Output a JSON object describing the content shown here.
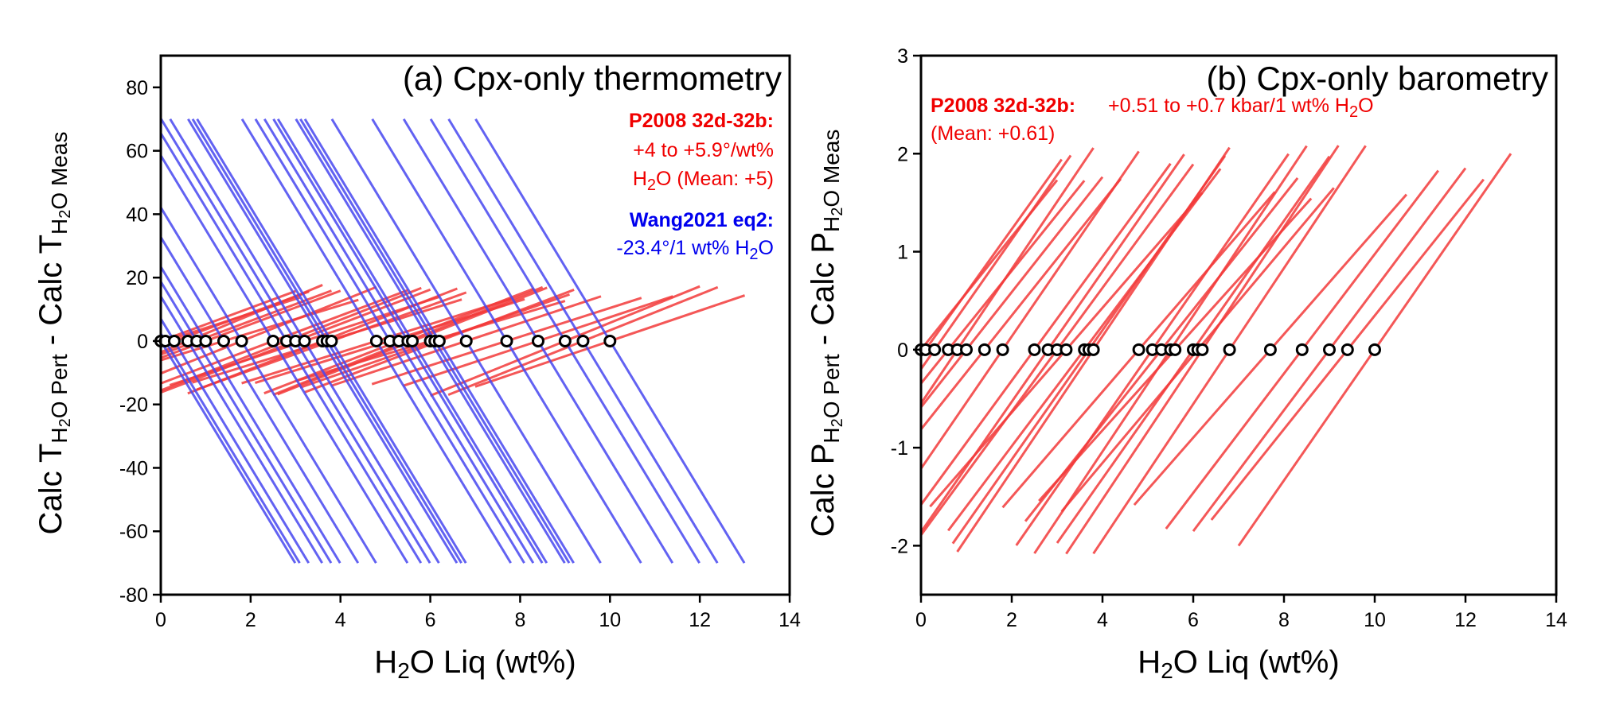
{
  "colors": {
    "red": "#f23a3a",
    "blue": "#4646f0",
    "red_text": "#f00000",
    "blue_text": "#0000ee",
    "marker": "#000000"
  },
  "chart_data": [
    {
      "type": "line",
      "title": "(a) Cpx-only thermometry",
      "xlabel": "H₂O Liq (wt%)",
      "ylabel": {
        "main": "Calc T",
        "sub1": "H",
        "sub1b": "2",
        "sub1c": "O Pert",
        "mid": " - Calc T",
        "sub2": "H",
        "sub2b": "2",
        "sub2c": "O Meas"
      },
      "xlim": [
        0,
        14
      ],
      "ylim": [
        -80,
        90
      ],
      "xticks": [
        "0",
        "2",
        "4",
        "6",
        "8",
        "10",
        "12",
        "14"
      ],
      "yticks": [
        "-80",
        "-60",
        "-40",
        "-20",
        "0",
        "20",
        "40",
        "60",
        "80"
      ],
      "ytick_values": [
        -80,
        -60,
        -40,
        -20,
        0,
        20,
        40,
        60,
        80
      ],
      "measured_h2o": [
        0.0,
        0.1,
        0.3,
        0.6,
        0.8,
        1.0,
        1.4,
        1.8,
        2.5,
        2.8,
        3.0,
        3.2,
        3.6,
        3.7,
        3.8,
        4.8,
        5.1,
        5.3,
        5.5,
        5.6,
        6.0,
        6.1,
        6.2,
        6.8,
        7.7,
        8.4,
        9.0,
        9.4,
        10.0
      ],
      "series": [
        {
          "legend_label": "P2008 32d-32b:",
          "legend_text": [
            "+4 to +5.9°/wt%",
            "H₂O (Mean: +5)"
          ],
          "slope_range": [
            4,
            5.9
          ],
          "slope_mean": 5,
          "perturbation_range": [
            -3,
            3
          ]
        },
        {
          "legend_label": "Wang2021 eq2:",
          "legend_text": "-23.4°/1 wt% H₂O",
          "slope": -23.4,
          "y_range": [
            -70,
            70
          ]
        }
      ],
      "markers": "open black circles at y = 0"
    },
    {
      "type": "line",
      "title": "(b) Cpx-only barometry",
      "xlabel": "H₂O Liq (wt%)",
      "ylabel": {
        "main": "Calc P",
        "sub1": "H",
        "sub1b": "2",
        "sub1c": "O Pert",
        "mid": " - Calc P",
        "sub2": "H",
        "sub2b": "2",
        "sub2c": "O Meas"
      },
      "xlim": [
        0,
        14
      ],
      "ylim": [
        -2.5,
        3
      ],
      "xticks": [
        "0",
        "2",
        "4",
        "6",
        "8",
        "10",
        "12",
        "14"
      ],
      "yticks": [
        "-2",
        "-1",
        "0",
        "1",
        "2",
        "3"
      ],
      "ytick_values": [
        -2,
        -1,
        0,
        1,
        2,
        3
      ],
      "measured_h2o": [
        0.0,
        0.1,
        0.3,
        0.6,
        0.8,
        1.0,
        1.4,
        1.8,
        2.5,
        2.8,
        3.0,
        3.2,
        3.6,
        3.7,
        3.8,
        4.8,
        5.1,
        5.3,
        5.5,
        5.6,
        6.0,
        6.1,
        6.2,
        6.8,
        7.7,
        8.4,
        9.0,
        9.4,
        10.0
      ],
      "series": [
        {
          "legend_label": "P2008 32d-32b:",
          "legend_text": "+0.51 to +0.7 kbar/1 wt% H₂O",
          "legend_text2": "(Mean: +0.61)",
          "slope_range": [
            0.51,
            0.7
          ],
          "slope_mean": 0.61,
          "perturbation_range": [
            -3,
            3
          ]
        }
      ],
      "markers": "open black circles at y = 0"
    }
  ]
}
